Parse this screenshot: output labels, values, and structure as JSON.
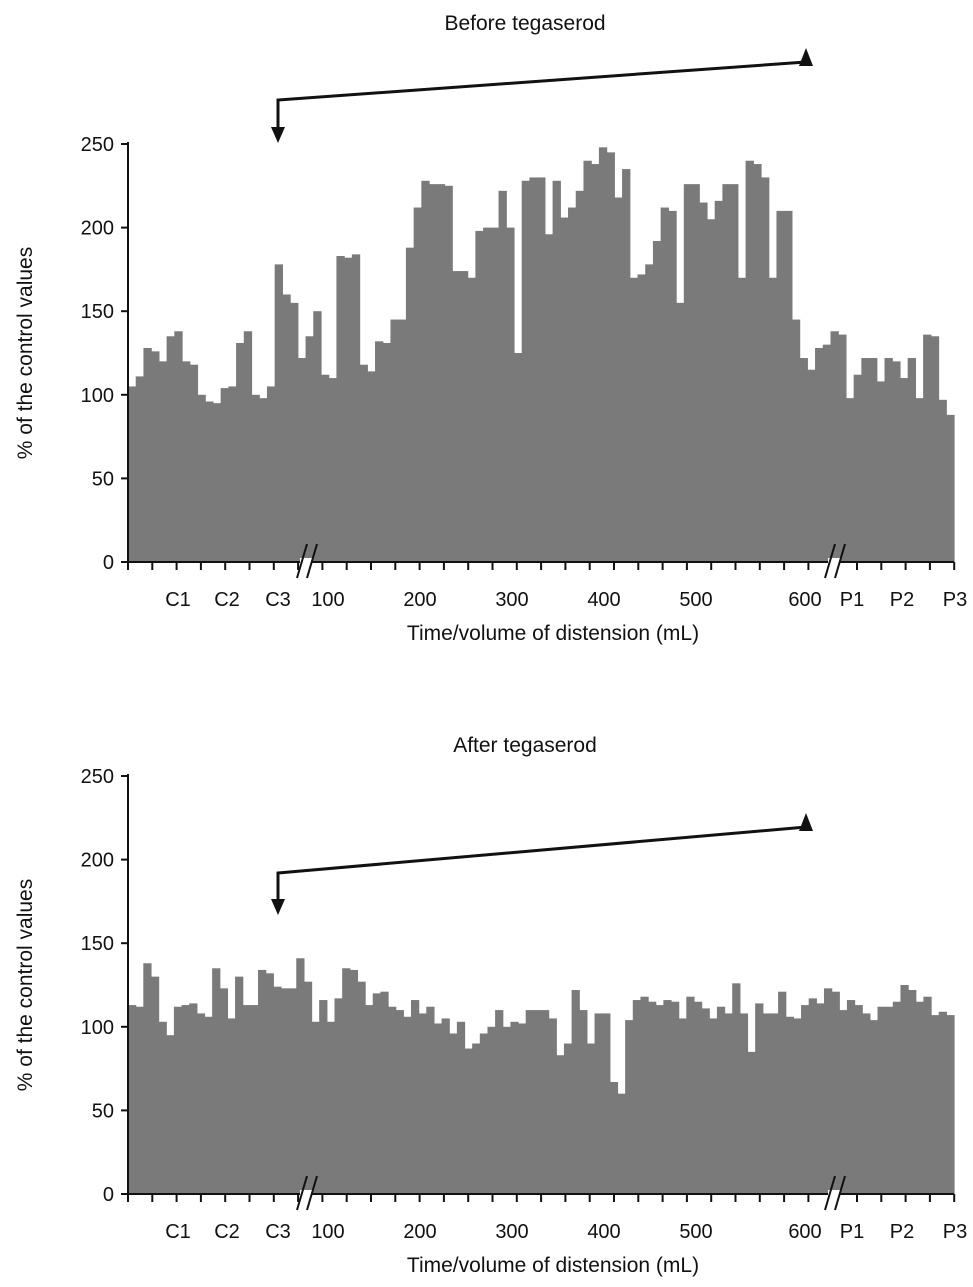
{
  "chart_data": [
    {
      "type": "area",
      "title": "Before tegaserod",
      "xlabel": "Time/volume of distension (mL)",
      "ylabel": "% of the control values",
      "ylim": [
        0,
        250
      ],
      "yticks": [
        0,
        50,
        100,
        150,
        200,
        250
      ],
      "xticks": [
        "C1",
        "C2",
        "C3",
        "100",
        "200",
        "300",
        "400",
        "500",
        "600",
        "P1",
        "P2",
        "P3"
      ],
      "axis_breaks": [
        "between C3 and 100",
        "between 600 and P1"
      ],
      "annotation": "arrow from C3 to 600",
      "color": "#7a7a7a",
      "values": [
        105,
        111,
        128,
        126,
        120,
        135,
        138,
        120,
        118,
        100,
        96,
        95,
        104,
        105,
        131,
        138,
        100,
        98,
        105,
        178,
        160,
        155,
        122,
        135,
        150,
        112,
        110,
        183,
        182,
        184,
        118,
        114,
        132,
        131,
        145,
        145,
        188,
        212,
        228,
        226,
        226,
        225,
        174,
        174,
        170,
        198,
        200,
        200,
        222,
        200,
        125,
        228,
        230,
        230,
        196,
        228,
        206,
        212,
        222,
        240,
        238,
        248,
        245,
        218,
        235,
        170,
        172,
        178,
        192,
        212,
        210,
        155,
        226,
        226,
        215,
        205,
        216,
        226,
        226,
        170,
        240,
        238,
        230,
        170,
        210,
        210,
        145,
        122,
        115,
        128,
        130,
        138,
        136,
        98,
        112,
        122,
        122,
        108,
        122,
        120,
        110,
        122,
        98,
        136,
        135,
        97,
        88
      ]
    },
    {
      "type": "area",
      "title": "After tegaserod",
      "xlabel": "Time/volume of distension (mL)",
      "ylabel": "% of the control values",
      "ylim": [
        0,
        250
      ],
      "yticks": [
        0,
        50,
        100,
        150,
        200,
        250
      ],
      "xticks": [
        "C1",
        "C2",
        "C3",
        "100",
        "200",
        "300",
        "400",
        "500",
        "600",
        "P1",
        "P2",
        "P3"
      ],
      "axis_breaks": [
        "between C3 and 100",
        "between 600 and P1"
      ],
      "annotation": "arrow from C3 to 600",
      "color": "#7a7a7a",
      "values": [
        113,
        112,
        138,
        130,
        103,
        95,
        112,
        113,
        114,
        108,
        106,
        135,
        123,
        105,
        130,
        113,
        113,
        134,
        132,
        124,
        123,
        123,
        141,
        127,
        103,
        116,
        103,
        117,
        135,
        134,
        127,
        113,
        120,
        121,
        112,
        110,
        106,
        116,
        108,
        112,
        102,
        105,
        96,
        103,
        87,
        90,
        96,
        100,
        110,
        100,
        103,
        102,
        110,
        110,
        110,
        105,
        83,
        90,
        122,
        110,
        90,
        108,
        108,
        67,
        60,
        104,
        116,
        118,
        115,
        113,
        116,
        115,
        105,
        118,
        115,
        111,
        105,
        112,
        108,
        126,
        108,
        85,
        114,
        108,
        108,
        121,
        106,
        105,
        113,
        117,
        114,
        123,
        121,
        110,
        116,
        113,
        108,
        104,
        112,
        112,
        115,
        125,
        122,
        115,
        118,
        107,
        109,
        107
      ]
    }
  ]
}
